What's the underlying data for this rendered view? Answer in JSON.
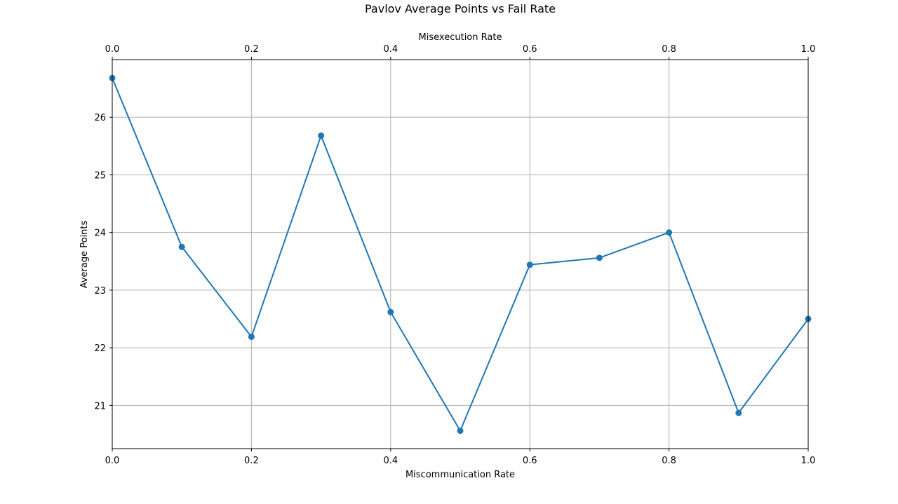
{
  "chart_data": {
    "type": "line",
    "title": "Pavlov Average Points vs Fail Rate",
    "xlabel": "Miscommunication Rate",
    "x2label": "Misexecution Rate",
    "ylabel": "Average Points",
    "x": [
      0.0,
      0.1,
      0.2,
      0.3,
      0.4,
      0.5,
      0.6,
      0.7,
      0.8,
      0.9,
      1.0
    ],
    "series": [
      {
        "values": [
          26.68,
          23.75,
          22.19,
          25.68,
          22.62,
          20.56,
          23.44,
          23.56,
          24.0,
          20.87,
          22.5
        ],
        "color": "#1f77b4",
        "marker": "circle"
      }
    ],
    "xlim": [
      0.0,
      1.0
    ],
    "ylim": [
      20.25,
      27.0
    ],
    "x_ticks": [
      "0.0",
      "0.2",
      "0.4",
      "0.6",
      "0.8",
      "1.0"
    ],
    "x2_ticks": [
      "0.0",
      "0.2",
      "0.4",
      "0.6",
      "0.8",
      "1.0"
    ],
    "y_ticks": [
      "21",
      "22",
      "23",
      "24",
      "25",
      "26"
    ],
    "grid": true,
    "grid_color": "#b0b0b0"
  }
}
